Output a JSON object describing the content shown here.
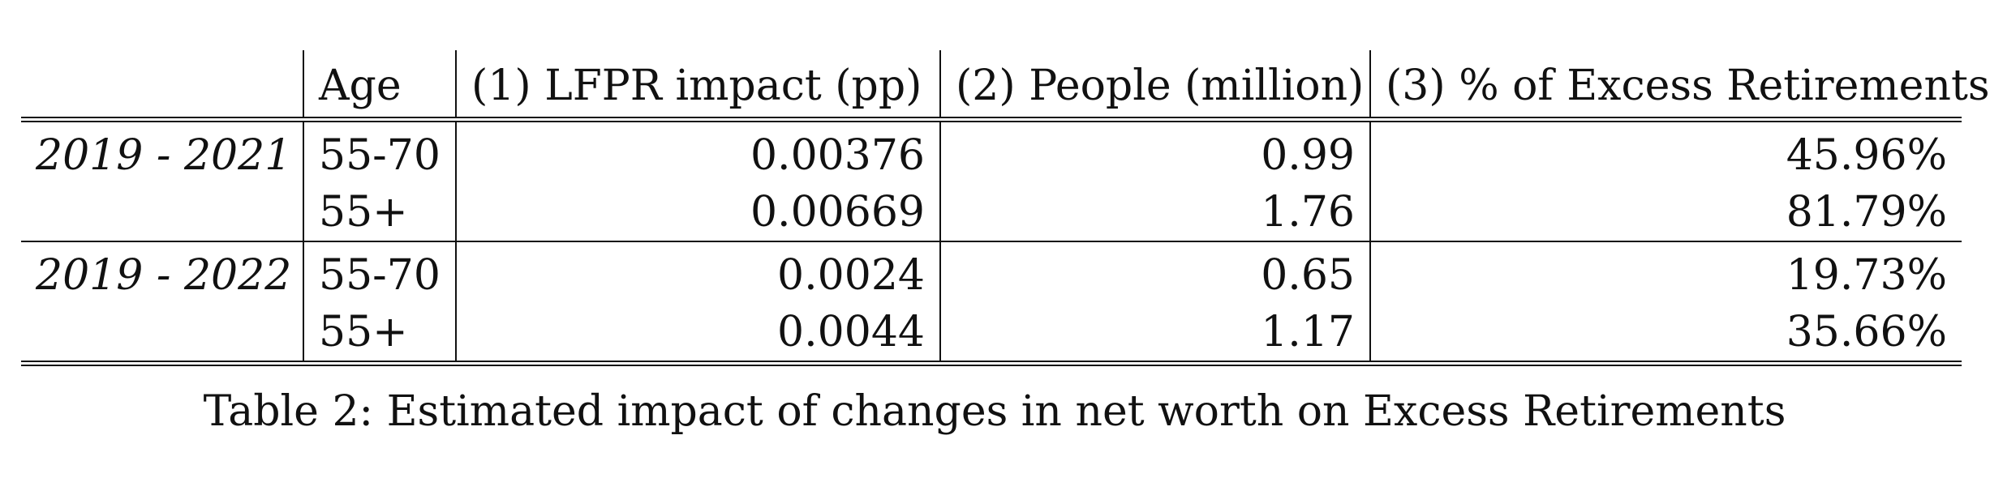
{
  "table": {
    "headers": {
      "period": "",
      "age": "Age",
      "lfpr": "(1) LFPR impact (pp)",
      "people": "(2) People (million)",
      "pct": "(3) % of Excess Retirements"
    },
    "groups": [
      {
        "period": "2019 - 2021",
        "rows": [
          {
            "age": "55-70",
            "lfpr": "0.00376",
            "people": "0.99",
            "pct": "45.96%"
          },
          {
            "age": "55+",
            "lfpr": "0.00669",
            "people": "1.76",
            "pct": "81.79%"
          }
        ]
      },
      {
        "period": "2019 - 2022",
        "rows": [
          {
            "age": "55-70",
            "lfpr": "0.0024",
            "people": "0.65",
            "pct": "19.73%"
          },
          {
            "age": "55+",
            "lfpr": "0.0044",
            "people": "1.17",
            "pct": "35.66%"
          }
        ]
      }
    ]
  },
  "caption": "Table 2: Estimated impact of changes in net worth on Excess Retirements"
}
